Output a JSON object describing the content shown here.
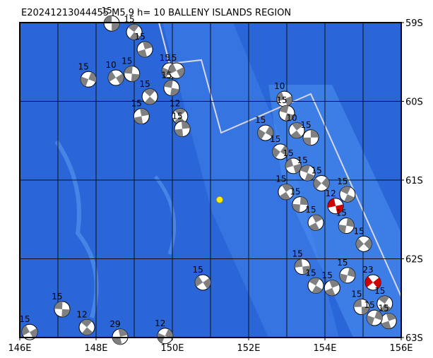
{
  "title": "E20241213044455 M5.9 h= 10 BALLENY ISLANDS REGION",
  "map": {
    "lonlim": [
      146,
      156
    ],
    "latlim": [
      59,
      63
    ],
    "lonticks": [
      {
        "value": 146,
        "label": "146E"
      },
      {
        "value": 148,
        "label": "148E"
      },
      {
        "value": 150,
        "label": "150E"
      },
      {
        "value": 152,
        "label": "152E"
      },
      {
        "value": 154,
        "label": "154E"
      },
      {
        "value": 156,
        "label": "156E"
      }
    ],
    "latticks": [
      {
        "value": 59,
        "label": "59S"
      },
      {
        "value": 60,
        "label": "60S"
      },
      {
        "value": 61,
        "label": "61S"
      },
      {
        "value": 62,
        "label": "62S"
      },
      {
        "value": 63,
        "label": "63S"
      }
    ],
    "grid_step": 1,
    "epicenter": {
      "lon": 151.24,
      "lat": 61.25,
      "color": "#ffee00"
    },
    "events": [
      {
        "lon": 148.41,
        "lat": 59.01,
        "depth": "15",
        "color": "#808080"
      },
      {
        "lon": 149.0,
        "lat": 59.12,
        "depth": "15",
        "color": "#808080"
      },
      {
        "lon": 149.28,
        "lat": 59.34,
        "depth": "15",
        "color": "#808080"
      },
      {
        "lon": 147.8,
        "lat": 59.72,
        "depth": "15",
        "color": "#808080"
      },
      {
        "lon": 148.52,
        "lat": 59.7,
        "depth": "10",
        "color": "#808080"
      },
      {
        "lon": 148.94,
        "lat": 59.65,
        "depth": "15",
        "color": "#808080"
      },
      {
        "lon": 149.41,
        "lat": 59.94,
        "depth": "15",
        "color": "#808080"
      },
      {
        "lon": 149.19,
        "lat": 60.19,
        "depth": "15",
        "color": "#808080"
      },
      {
        "lon": 149.93,
        "lat": 59.61,
        "depth": "15",
        "color": "#808080"
      },
      {
        "lon": 150.11,
        "lat": 59.61,
        "depth": "15",
        "color": "#808080"
      },
      {
        "lon": 149.98,
        "lat": 59.83,
        "depth": "15",
        "color": "#808080"
      },
      {
        "lon": 150.2,
        "lat": 60.19,
        "depth": "12",
        "color": "#808080"
      },
      {
        "lon": 150.26,
        "lat": 60.35,
        "depth": "15",
        "color": "#808080"
      },
      {
        "lon": 152.44,
        "lat": 60.4,
        "depth": "15",
        "color": "#808080"
      },
      {
        "lon": 152.94,
        "lat": 59.97,
        "depth": "10",
        "color": "#808080"
      },
      {
        "lon": 153.0,
        "lat": 60.15,
        "depth": "15",
        "color": "#808080"
      },
      {
        "lon": 153.26,
        "lat": 60.37,
        "depth": "10",
        "color": "#808080"
      },
      {
        "lon": 153.63,
        "lat": 60.46,
        "depth": "15",
        "color": "#808080"
      },
      {
        "lon": 152.83,
        "lat": 60.64,
        "depth": "15",
        "color": "#808080"
      },
      {
        "lon": 153.17,
        "lat": 60.82,
        "depth": "15",
        "color": "#808080"
      },
      {
        "lon": 153.54,
        "lat": 60.91,
        "depth": "15",
        "color": "#808080"
      },
      {
        "lon": 152.98,
        "lat": 61.15,
        "depth": "15",
        "color": "#808080"
      },
      {
        "lon": 153.35,
        "lat": 61.31,
        "depth": "15",
        "color": "#808080"
      },
      {
        "lon": 153.91,
        "lat": 61.04,
        "depth": "15",
        "color": "#808080"
      },
      {
        "lon": 154.28,
        "lat": 61.33,
        "depth": "12",
        "color": "#d00000"
      },
      {
        "lon": 154.59,
        "lat": 61.18,
        "depth": "15",
        "color": "#808080"
      },
      {
        "lon": 153.76,
        "lat": 61.54,
        "depth": "15",
        "color": "#808080"
      },
      {
        "lon": 154.56,
        "lat": 61.58,
        "depth": "15",
        "color": "#808080"
      },
      {
        "lon": 155.02,
        "lat": 61.81,
        "depth": "15",
        "color": "#808080"
      },
      {
        "lon": 153.41,
        "lat": 62.1,
        "depth": "15",
        "color": "#808080"
      },
      {
        "lon": 153.76,
        "lat": 62.34,
        "depth": "15",
        "color": "#808080"
      },
      {
        "lon": 154.19,
        "lat": 62.37,
        "depth": "15",
        "color": "#808080"
      },
      {
        "lon": 154.59,
        "lat": 62.21,
        "depth": "15",
        "color": "#808080"
      },
      {
        "lon": 155.26,
        "lat": 62.3,
        "depth": "23",
        "color": "#d00000"
      },
      {
        "lon": 154.96,
        "lat": 62.61,
        "depth": "15",
        "color": "#808080"
      },
      {
        "lon": 155.57,
        "lat": 62.57,
        "depth": "15",
        "color": "#808080"
      },
      {
        "lon": 155.67,
        "lat": 62.79,
        "depth": "15",
        "color": "#808080"
      },
      {
        "lon": 155.3,
        "lat": 62.75,
        "depth": "15",
        "color": "#808080"
      },
      {
        "lon": 150.8,
        "lat": 62.3,
        "depth": "15",
        "color": "#808080"
      },
      {
        "lon": 147.11,
        "lat": 62.64,
        "depth": "15",
        "color": "#808080"
      },
      {
        "lon": 147.76,
        "lat": 62.87,
        "depth": "12",
        "color": "#808080"
      },
      {
        "lon": 148.63,
        "lat": 62.99,
        "depth": "29",
        "color": "#808080"
      },
      {
        "lon": 149.81,
        "lat": 62.98,
        "depth": "12",
        "color": "#808080"
      },
      {
        "lon": 146.26,
        "lat": 62.93,
        "depth": "15",
        "color": "#808080"
      }
    ]
  }
}
